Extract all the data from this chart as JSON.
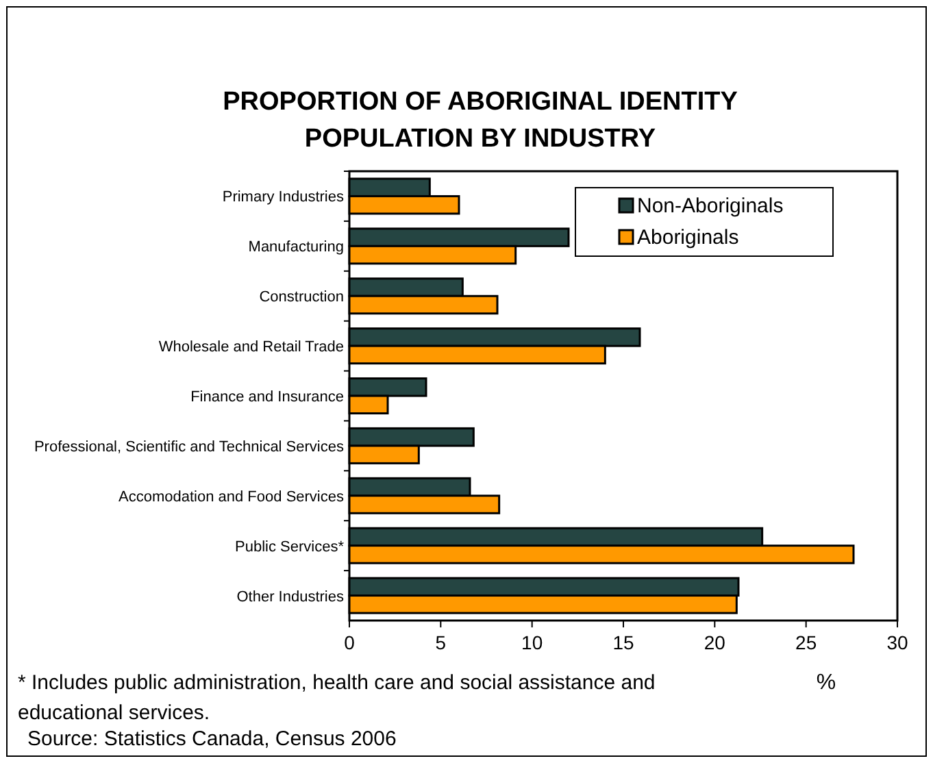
{
  "chart_data": {
    "type": "bar",
    "orientation": "horizontal",
    "title": "PROPORTION OF ABORIGINAL IDENTITY POPULATION BY INDUSTRY",
    "xlabel": "%",
    "categories": [
      "Primary Industries",
      "Manufacturing",
      "Construction",
      "Wholesale and Retail Trade",
      "Finance and Insurance",
      "Professional, Scientific and Technical Services",
      "Accomodation and Food Services",
      "Public Services*",
      "Other Industries"
    ],
    "series": [
      {
        "name": "Non-Aboriginals",
        "color": "#254542",
        "values": [
          4.4,
          12.0,
          6.2,
          15.9,
          4.2,
          6.8,
          6.6,
          22.6,
          21.3
        ]
      },
      {
        "name": "Aboriginals",
        "color": "#ff9900",
        "values": [
          6.0,
          9.1,
          8.1,
          14.0,
          2.1,
          3.8,
          8.2,
          27.6,
          21.2
        ]
      }
    ],
    "xlim": [
      0,
      30
    ],
    "xticks": [
      0,
      5,
      10,
      15,
      20,
      25,
      30
    ],
    "grid": false,
    "legend": "top right",
    "annotations": [
      "* Includes public administration, health care and social assistance and educational services.",
      "Source: Statistics Canada, Census 2006"
    ]
  }
}
